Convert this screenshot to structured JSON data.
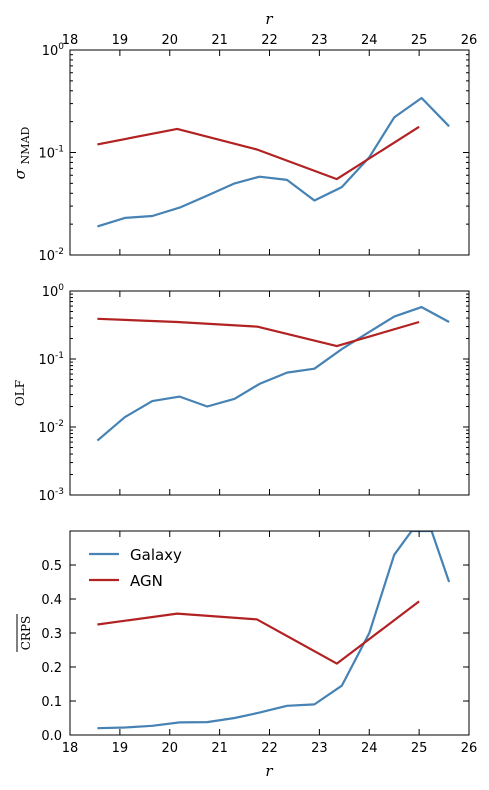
{
  "colors": {
    "galaxy": "#4682b4",
    "agn": "#b22222"
  },
  "chart_data": [
    {
      "type": "line",
      "panel": "top",
      "xlabel": "r",
      "ylabel": "σNMAD",
      "yscale": "log",
      "xlim": [
        18,
        26
      ],
      "ylim": [
        0.01,
        1
      ],
      "x_ticks": [
        "18",
        "19",
        "20",
        "21",
        "22",
        "23",
        "24",
        "25",
        "26"
      ],
      "y_ticks": [
        {
          "base": "10",
          "exp": "-2",
          "value": 0.01
        },
        {
          "base": "10",
          "exp": "-1",
          "value": 0.1
        },
        {
          "base": "10",
          "exp": "0",
          "value": 1
        }
      ],
      "grid": false,
      "series": [
        {
          "key": "galaxy",
          "x": [
            18.55,
            19.1,
            19.65,
            20.2,
            20.75,
            21.3,
            21.8,
            22.35,
            22.9,
            23.45,
            24.0,
            24.5,
            25.05,
            25.6
          ],
          "values": [
            0.019,
            0.023,
            0.024,
            0.029,
            0.038,
            0.05,
            0.058,
            0.054,
            0.034,
            0.046,
            0.09,
            0.22,
            0.34,
            0.18
          ]
        },
        {
          "key": "agn",
          "x": [
            18.55,
            20.15,
            21.75,
            23.35,
            25.0
          ],
          "values": [
            0.12,
            0.17,
            0.107,
            0.055,
            0.178
          ]
        }
      ]
    },
    {
      "type": "line",
      "panel": "middle",
      "xlabel": "",
      "ylabel": "OLF",
      "yscale": "log",
      "xlim": [
        18,
        26
      ],
      "ylim": [
        0.001,
        1
      ],
      "y_ticks": [
        {
          "base": "10",
          "exp": "-3",
          "value": 0.001
        },
        {
          "base": "10",
          "exp": "-2",
          "value": 0.01
        },
        {
          "base": "10",
          "exp": "-1",
          "value": 0.1
        },
        {
          "base": "10",
          "exp": "0",
          "value": 1
        }
      ],
      "grid": false,
      "series": [
        {
          "key": "galaxy",
          "x": [
            18.55,
            19.1,
            19.65,
            20.2,
            20.75,
            21.3,
            21.8,
            22.35,
            22.9,
            23.45,
            24.0,
            24.5,
            25.05,
            25.6
          ],
          "values": [
            0.0063,
            0.014,
            0.024,
            0.028,
            0.02,
            0.026,
            0.043,
            0.063,
            0.072,
            0.14,
            0.25,
            0.42,
            0.58,
            0.35
          ]
        },
        {
          "key": "agn",
          "x": [
            18.55,
            20.15,
            21.75,
            23.35,
            25.0
          ],
          "values": [
            0.39,
            0.35,
            0.3,
            0.155,
            0.35
          ]
        }
      ]
    },
    {
      "type": "line",
      "panel": "bottom",
      "xlabel": "r",
      "ylabel": "CRPS",
      "yscale": "linear",
      "xlim": [
        18,
        26
      ],
      "ylim": [
        0,
        0.6
      ],
      "x_ticks": [
        "18",
        "19",
        "20",
        "21",
        "22",
        "23",
        "24",
        "25",
        "26"
      ],
      "y_ticks": [
        "0.0",
        "0.1",
        "0.2",
        "0.3",
        "0.4",
        "0.5"
      ],
      "grid": false,
      "legend": {
        "position": "top-left",
        "entries": [
          {
            "key": "galaxy",
            "label": "Galaxy"
          },
          {
            "key": "agn",
            "label": "AGN"
          }
        ]
      },
      "series": [
        {
          "key": "galaxy",
          "name": "Galaxy",
          "x": [
            18.55,
            19.1,
            19.65,
            20.2,
            20.75,
            21.3,
            21.8,
            22.35,
            22.9,
            23.45,
            24.0,
            24.5,
            24.85,
            25.25,
            25.6
          ],
          "values": [
            0.02,
            0.022,
            0.027,
            0.037,
            0.038,
            0.05,
            0.066,
            0.086,
            0.09,
            0.145,
            0.3,
            0.53,
            0.6,
            0.6,
            0.45
          ]
        },
        {
          "key": "agn",
          "name": "AGN",
          "x": [
            18.55,
            20.15,
            21.75,
            23.35,
            25.0
          ],
          "values": [
            0.325,
            0.357,
            0.34,
            0.21,
            0.393
          ]
        }
      ]
    }
  ]
}
